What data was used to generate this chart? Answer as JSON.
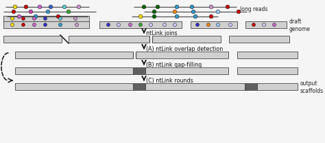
{
  "bg_color": "#f5f5f5",
  "long_reads_label": "long reads",
  "draft_genome_label": "draft\ngenome",
  "output_scaffolds_label": "output\nscaffolds",
  "step_labels": [
    "ntLink joins",
    "(A) ntLink overlap detection",
    "(B) ntLink gap-filling",
    "(C) ntLink rounds"
  ],
  "bar_color_light": "#d0d0d0",
  "bar_color_dark": "#606060",
  "bar_edge_color": "#444444",
  "line_color": "#555555"
}
